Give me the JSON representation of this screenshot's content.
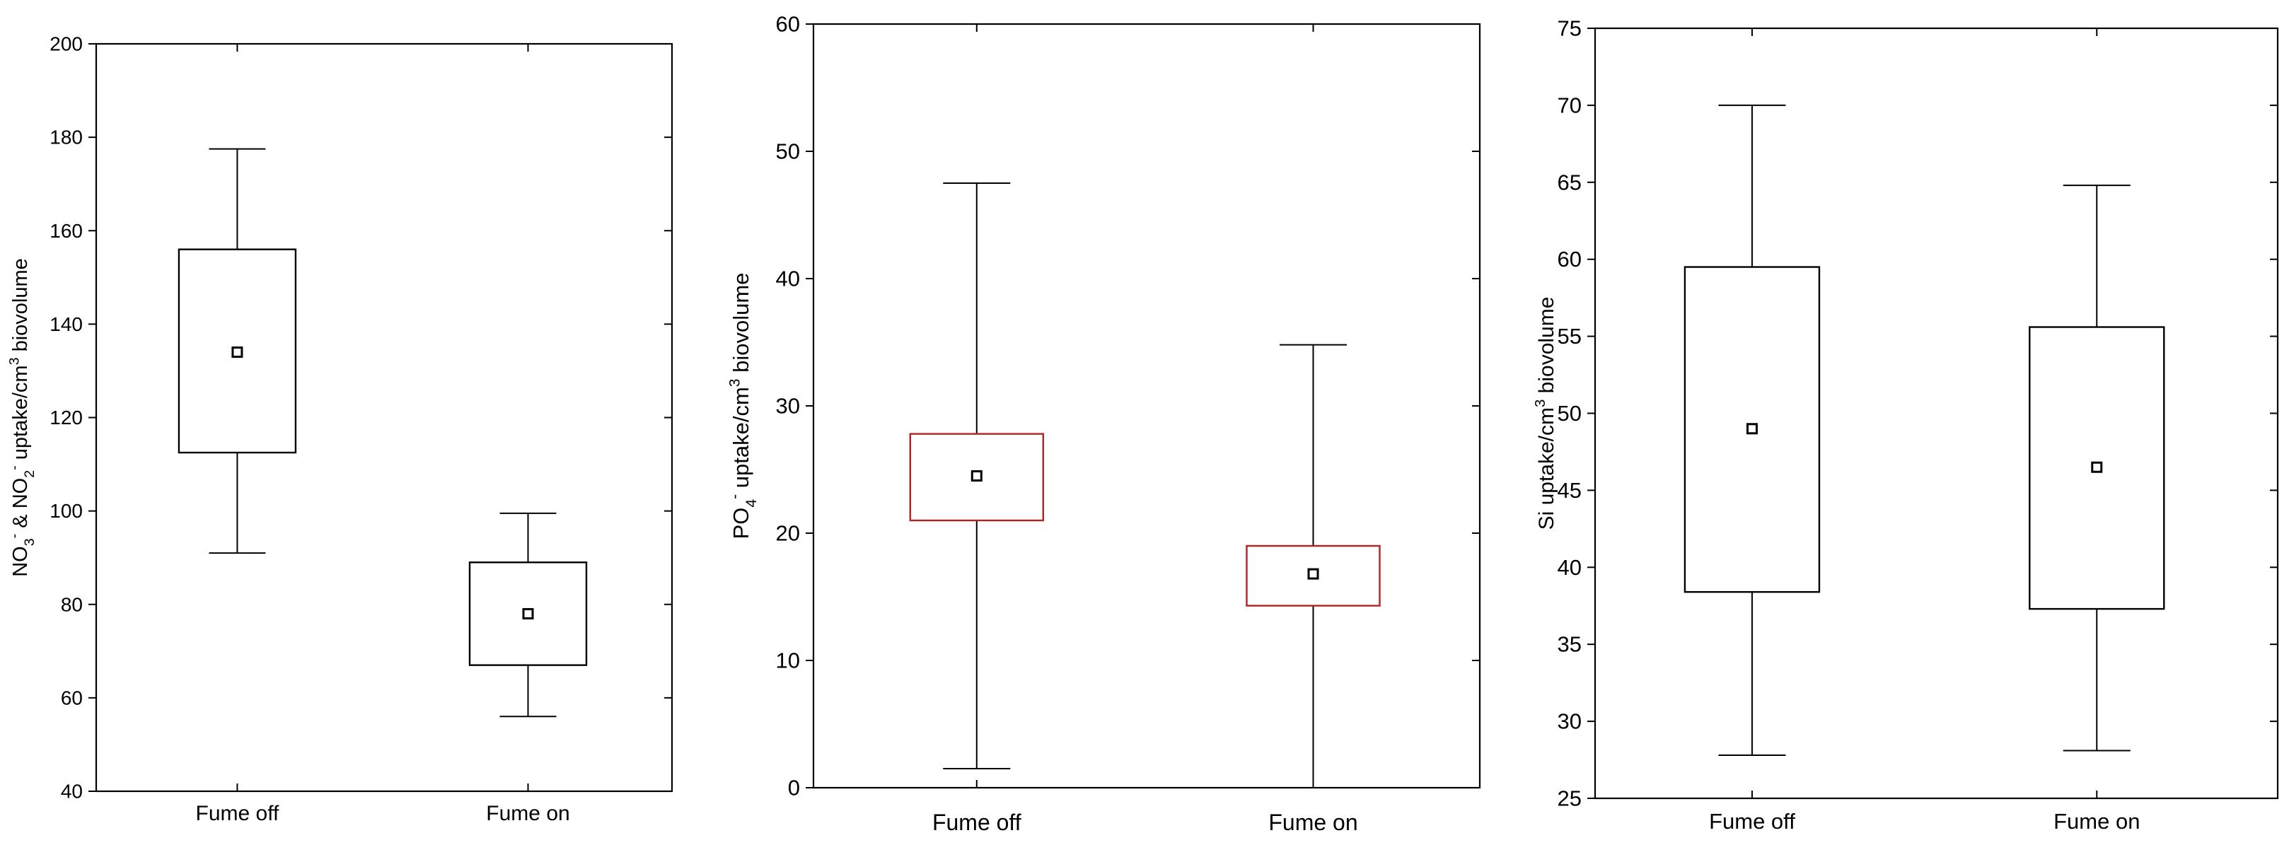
{
  "chart_data": [
    {
      "type": "box",
      "ylabel_parts": [
        {
          "text": "NO"
        },
        {
          "text": "3",
          "shift": "sub"
        },
        {
          "text": "-",
          "shift": "super"
        },
        {
          "text": " & NO"
        },
        {
          "text": "2",
          "shift": "sub"
        },
        {
          "text": "-",
          "shift": "super"
        },
        {
          "text": " uptake/cm"
        },
        {
          "text": "3",
          "shift": "super"
        },
        {
          "text": " biovolume"
        }
      ],
      "ylim": [
        40,
        200
      ],
      "yticks": [
        40,
        60,
        80,
        100,
        120,
        140,
        160,
        180,
        200
      ],
      "box_color": "#000000",
      "groups": [
        {
          "label": "Fume off",
          "whisker_low": 91,
          "box_low": 112.5,
          "mean": 134,
          "box_high": 156,
          "whisker_high": 177.5
        },
        {
          "label": "Fume on",
          "whisker_low": 56,
          "box_low": 67,
          "mean": 78,
          "box_high": 89,
          "whisker_high": 99.5
        }
      ]
    },
    {
      "type": "box",
      "ylabel_parts": [
        {
          "text": "PO"
        },
        {
          "text": "4",
          "shift": "sub"
        },
        {
          "text": "-",
          "shift": "super"
        },
        {
          "text": " uptake/cm"
        },
        {
          "text": "3",
          "shift": "super"
        },
        {
          "text": " biovolume"
        }
      ],
      "ylim": [
        0,
        60
      ],
      "yticks": [
        0,
        10,
        20,
        30,
        40,
        50,
        60
      ],
      "box_color": "#b22222",
      "groups": [
        {
          "label": "Fume off",
          "whisker_low": 1.5,
          "box_low": 21,
          "mean": 24.5,
          "box_high": 27.8,
          "whisker_high": 47.5
        },
        {
          "label": "Fume on",
          "whisker_low": 0,
          "box_low": 14.3,
          "mean": 16.8,
          "box_high": 19,
          "whisker_high": 34.8
        }
      ]
    },
    {
      "type": "box",
      "ylabel_parts": [
        {
          "text": "Si uptake/cm"
        },
        {
          "text": "3",
          "shift": "super"
        },
        {
          "text": " biovolume"
        }
      ],
      "ylim": [
        25,
        75
      ],
      "yticks": [
        25,
        30,
        35,
        40,
        45,
        50,
        55,
        60,
        65,
        70,
        75
      ],
      "box_color": "#000000",
      "groups": [
        {
          "label": "Fume off",
          "whisker_low": 27.8,
          "box_low": 38.4,
          "mean": 49,
          "box_high": 59.5,
          "whisker_high": 70
        },
        {
          "label": "Fume on",
          "whisker_low": 28.1,
          "box_low": 37.3,
          "mean": 46.5,
          "box_high": 55.6,
          "whisker_high": 64.8
        }
      ]
    }
  ]
}
